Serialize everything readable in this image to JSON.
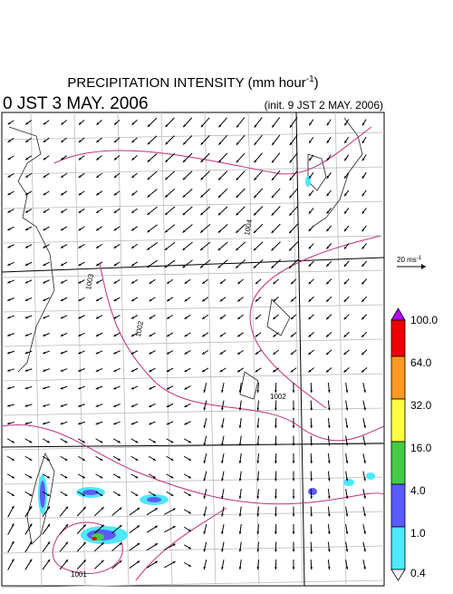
{
  "title": {
    "main": "PRECIPITATION INTENSITY (mm hour",
    "sup": "-1",
    "end": ")"
  },
  "valid_time": "0 JST 3 MAY. 2006",
  "init_time": "(init. 9 JST 2 MAY. 2006)",
  "reference_vector": {
    "label": "20 ms",
    "sup": "-1"
  },
  "isobar_labels": [
    "1004",
    "1003",
    "1002",
    "1002",
    "1001"
  ],
  "colorbar": {
    "labels": [
      "100.0",
      "64.0",
      "32.0",
      "16.0",
      "4.0",
      "1.0",
      "0.4"
    ]
  }
}
